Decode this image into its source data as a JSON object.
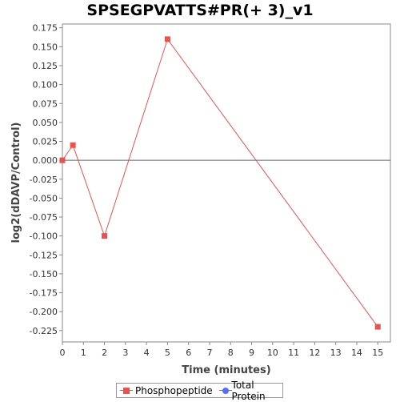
{
  "chart_data": {
    "type": "line",
    "title": "SPSEGPVATTS#PR(+ 3)_v1",
    "xlabel": "Time (minutes)",
    "ylabel": "log2(dDAVP/Control)",
    "xlim": [
      0,
      15.6
    ],
    "ylim": [
      -0.24,
      0.18
    ],
    "x_ticks": [
      0,
      1,
      2,
      3,
      4,
      5,
      6,
      7,
      8,
      9,
      10,
      11,
      12,
      13,
      14,
      15
    ],
    "y_ticks": [
      0.175,
      0.15,
      0.125,
      0.1,
      0.075,
      0.05,
      0.025,
      0.0,
      -0.025,
      -0.05,
      -0.075,
      -0.1,
      -0.125,
      -0.15,
      -0.175,
      -0.2,
      -0.225
    ],
    "y_tick_labels": [
      "0.175",
      "0.150",
      "0.125",
      "0.100",
      "0.075",
      "0.050",
      "0.025",
      "0.000",
      "-0.025",
      "-0.050",
      "-0.075",
      "-0.100",
      "-0.125",
      "-0.150",
      "-0.175",
      "-0.200",
      "-0.225"
    ],
    "series": [
      {
        "name": "Phosphopeptide",
        "color": "#e8524f",
        "marker": "square",
        "x": [
          0,
          0.5,
          2,
          5,
          15
        ],
        "y": [
          0.0,
          0.02,
          -0.1,
          0.16,
          -0.22
        ]
      },
      {
        "name": "Total Protein",
        "color": "#5b6cf0",
        "marker": "circle",
        "x": [],
        "y": []
      }
    ],
    "zero_line": true,
    "grid": false,
    "legend_position": "bottom"
  }
}
